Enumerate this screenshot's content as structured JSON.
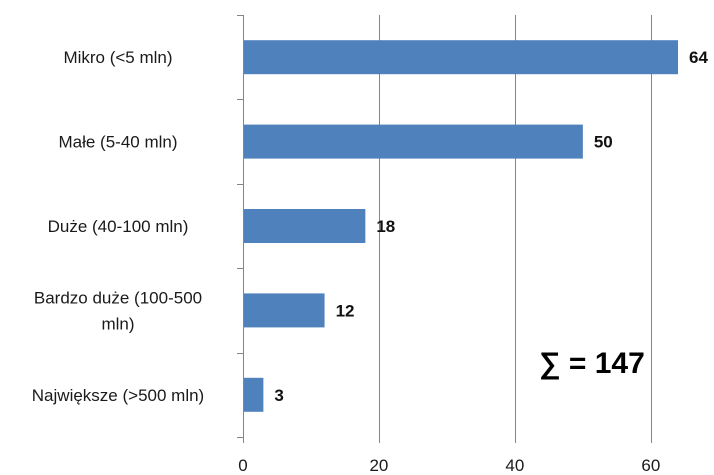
{
  "chart_data": {
    "type": "bar",
    "orientation": "horizontal",
    "categories": [
      "Mikro (<5 mln)",
      "Małe (5-40 mln)",
      "Duże (40-100 mln)",
      "Bardzo duże (100-500 mln)",
      "Największe (>500 mln)"
    ],
    "values": [
      64,
      50,
      18,
      12,
      3
    ],
    "data_labels": [
      "64",
      "50",
      "18",
      "12",
      "3"
    ],
    "xlim": [
      0,
      69
    ],
    "xticks": [
      0,
      20,
      40,
      60
    ],
    "xtick_labels": [
      "0",
      "20",
      "40",
      "60"
    ],
    "grid": "vertical",
    "bar_color": "#4F81BD",
    "annotation": "∑ = 147"
  }
}
